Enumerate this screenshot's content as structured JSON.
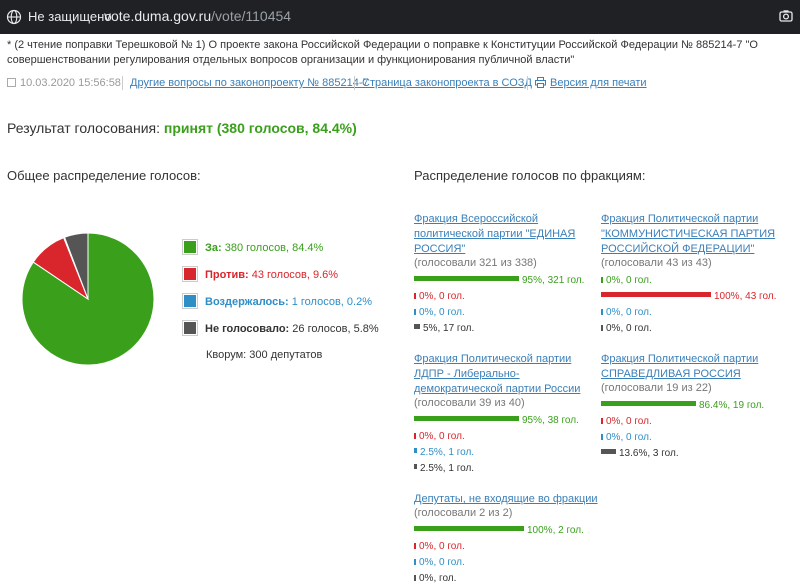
{
  "browser": {
    "security_label": "Не защищено",
    "url_host": "vote.duma.gov.ru",
    "url_path": "/vote/110454"
  },
  "page": {
    "title": "* (2 чтение поправки Терешковой № 1) О проекте закона Российской Федерации о поправке к Конституции Российской Федерации № 885214-7 \"О совершенствовании регулирования отдельных вопросов организации и функционирования публичной власти\"",
    "date": "10.03.2020 15:56:58",
    "links": {
      "other_questions": "Другие вопросы по законопроекту № 885214-7",
      "bill_page": "Страница законопроекта в СОЗД",
      "print_version": "Версия для печати"
    },
    "result_label": "Результат голосования:",
    "result_value": "принят (380 голосов, 84.4%)"
  },
  "overall": {
    "heading": "Общее распределение голосов:",
    "legend": [
      {
        "label": "За:",
        "text": "380 голосов, 84.4%",
        "color": "#3aa01c"
      },
      {
        "label": "Против:",
        "text": "43 голосов, 9.6%",
        "color": "#d9262c"
      },
      {
        "label": "Воздержалось:",
        "text": "1 голосов, 0.2%",
        "color": "#2e8ec6"
      },
      {
        "label": "Не голосовало:",
        "text": "26 голосов, 5.8%",
        "color": "#555555"
      }
    ],
    "quorum": "Кворум: 300 депутатов"
  },
  "chart_data": {
    "type": "pie",
    "categories": [
      "За",
      "Против",
      "Воздержалось",
      "Не голосовало"
    ],
    "values": [
      380,
      43,
      1,
      26
    ],
    "colors": [
      "#3aa01c",
      "#d9262c",
      "#2e8ec6",
      "#555555"
    ]
  },
  "factions_heading": "Распределение голосов по фракциям:",
  "factions": [
    {
      "name": "Фракция Всероссийской политической партии \"ЕДИНАЯ РОССИЯ\"",
      "voted": "(голосовали 321 из 338)",
      "rows": [
        {
          "kind": "for",
          "share": 0.95,
          "text": "95%, 321 гол."
        },
        {
          "kind": "against",
          "share": 0,
          "text": "0%, 0 гол."
        },
        {
          "kind": "abstain",
          "share": 0,
          "text": "0%, 0 гол."
        },
        {
          "kind": "absent",
          "share": 0.05,
          "text": "5%, 17 гол."
        }
      ]
    },
    {
      "name": "Фракция Политической партии \"КОММУНИСТИЧЕСКАЯ ПАРТИЯ РОССИЙСКОЙ ФЕДЕРАЦИИ\"",
      "voted": "(голосовали 43 из 43)",
      "rows": [
        {
          "kind": "for",
          "share": 0,
          "text": "0%, 0 гол."
        },
        {
          "kind": "against",
          "share": 1.0,
          "text": "100%, 43 гол."
        },
        {
          "kind": "abstain",
          "share": 0,
          "text": "0%, 0 гол."
        },
        {
          "kind": "absent",
          "share": 0,
          "text": "0%, 0 гол."
        }
      ]
    },
    {
      "name": "Фракция Политической партии ЛДПР - Либерально-демократической партии России",
      "voted": "(голосовали 39 из 40)",
      "rows": [
        {
          "kind": "for",
          "share": 0.95,
          "text": "95%, 38 гол."
        },
        {
          "kind": "against",
          "share": 0,
          "text": "0%, 0 гол."
        },
        {
          "kind": "abstain",
          "share": 0.025,
          "text": "2.5%, 1 гол."
        },
        {
          "kind": "absent",
          "share": 0.025,
          "text": "2.5%, 1 гол."
        }
      ]
    },
    {
      "name": "Фракция Политической партии СПРАВЕДЛИВАЯ РОССИЯ",
      "voted": "(голосовали 19 из 22)",
      "rows": [
        {
          "kind": "for",
          "share": 0.864,
          "text": "86.4%, 19 гол."
        },
        {
          "kind": "against",
          "share": 0,
          "text": "0%, 0 гол."
        },
        {
          "kind": "abstain",
          "share": 0,
          "text": "0%, 0 гол."
        },
        {
          "kind": "absent",
          "share": 0.136,
          "text": "13.6%, 3 гол."
        }
      ]
    },
    {
      "name": "Депутаты, не входящие во фракции",
      "voted": "(голосовали 2 из 2)",
      "rows": [
        {
          "kind": "for",
          "share": 1.0,
          "text": "100%, 2 гол."
        },
        {
          "kind": "against",
          "share": 0,
          "text": "0%, 0 гол."
        },
        {
          "kind": "abstain",
          "share": 0,
          "text": "0%, 0 гол."
        },
        {
          "kind": "absent",
          "share": 0,
          "text": "0%, гол."
        }
      ]
    }
  ]
}
